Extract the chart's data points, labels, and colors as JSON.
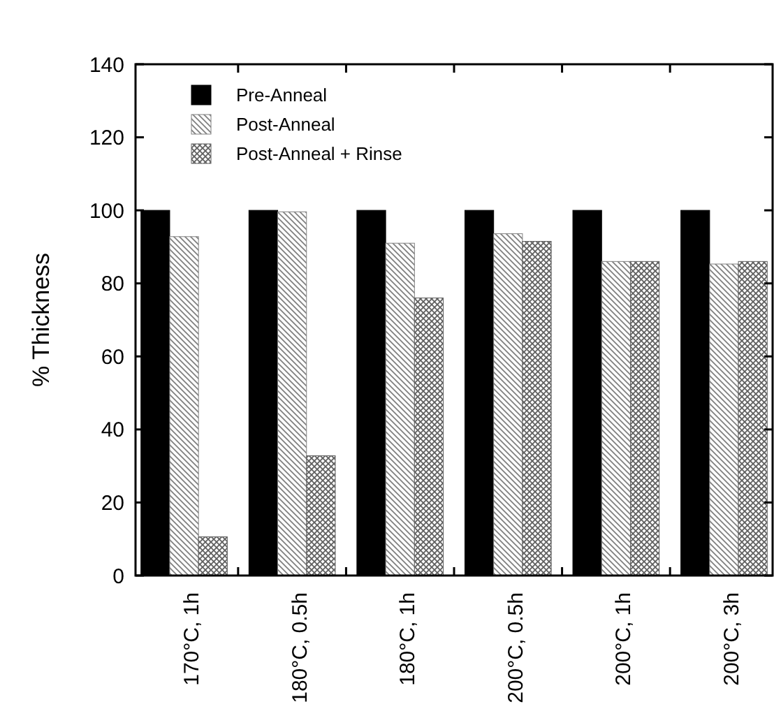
{
  "chart_data": {
    "type": "bar",
    "ylabel": "% Thickness",
    "categories": [
      "170°C, 1h",
      "180°C, 0.5h",
      "180°C, 1h",
      "200°C, 0.5h",
      "200°C, 1h",
      "200°C, 3h"
    ],
    "series": [
      {
        "name": "Pre-Anneal",
        "color": "#000000",
        "values": [
          100,
          100,
          100,
          100,
          100,
          100
        ]
      },
      {
        "name": "Post-Anneal",
        "color": "#808080",
        "values": [
          92.8,
          99.6,
          91,
          93.6,
          86,
          85.3
        ]
      },
      {
        "name": "Post-Anneal + Rinse",
        "color": "#606060",
        "values": [
          10.6,
          32.8,
          76,
          91.5,
          86,
          86
        ]
      }
    ],
    "ylim": [
      0,
      140
    ],
    "yticks": [
      0,
      20,
      40,
      60,
      80,
      100,
      120,
      140
    ],
    "grid": false,
    "legend": "top left"
  }
}
